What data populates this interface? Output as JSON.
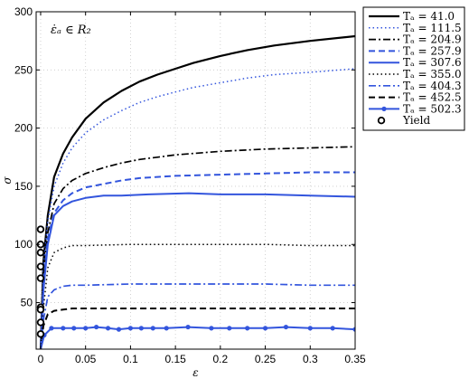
{
  "chart_data": {
    "type": "line",
    "title": "",
    "xlabel": "ε",
    "ylabel": "σ",
    "annotation": "ε̇ₐ ∈ R₂",
    "xlim": [
      -0.005,
      0.35
    ],
    "ylim": [
      10,
      300
    ],
    "xticks": [
      0,
      0.05,
      0.1,
      0.15,
      0.2,
      0.25,
      0.3,
      0.35
    ],
    "xtick_labels": [
      "0",
      "0.05",
      "0.1",
      "0.15",
      "0.2",
      "0.25",
      "0.3",
      "0.35"
    ],
    "yticks": [
      50,
      100,
      150,
      200,
      250,
      300
    ],
    "ytick_labels": [
      "50",
      "100",
      "150",
      "200",
      "250",
      "300"
    ],
    "grid": true,
    "legend_position": "outside-top-right",
    "series": [
      {
        "name": "Tₐ = 41.0",
        "color": "#000000",
        "dash": "solid",
        "width": 2.2,
        "marker": "none",
        "x": [
          0,
          0.003,
          0.008,
          0.015,
          0.025,
          0.035,
          0.05,
          0.07,
          0.09,
          0.11,
          0.13,
          0.15,
          0.17,
          0.2,
          0.23,
          0.26,
          0.3,
          0.35
        ],
        "y": [
          10,
          85,
          125,
          158,
          178,
          192,
          208,
          222,
          232,
          240,
          246,
          251,
          256,
          262,
          267,
          271,
          275,
          279
        ]
      },
      {
        "name": "Tₐ = 111.5",
        "color": "#3355dd",
        "dash": "dot",
        "width": 1.5,
        "marker": "none",
        "x": [
          0,
          0.003,
          0.008,
          0.015,
          0.025,
          0.035,
          0.05,
          0.07,
          0.09,
          0.11,
          0.13,
          0.15,
          0.17,
          0.2,
          0.23,
          0.26,
          0.3,
          0.35
        ],
        "y": [
          10,
          80,
          120,
          150,
          170,
          183,
          196,
          207,
          215,
          222,
          227,
          231,
          235,
          239,
          243,
          246,
          248,
          251
        ]
      },
      {
        "name": "Tₐ = 204.9",
        "color": "#000000",
        "dash": "dashdot",
        "width": 1.7,
        "marker": "none",
        "x": [
          0,
          0.003,
          0.008,
          0.015,
          0.025,
          0.035,
          0.05,
          0.07,
          0.09,
          0.11,
          0.13,
          0.15,
          0.2,
          0.25,
          0.3,
          0.35
        ],
        "y": [
          10,
          70,
          110,
          135,
          148,
          155,
          161,
          166,
          170,
          173,
          175,
          177,
          180,
          182,
          183,
          184
        ]
      },
      {
        "name": "Tₐ = 257.9",
        "color": "#3355dd",
        "dash": "dash",
        "width": 2.0,
        "marker": "none",
        "x": [
          0,
          0.003,
          0.008,
          0.015,
          0.025,
          0.035,
          0.05,
          0.07,
          0.09,
          0.11,
          0.13,
          0.15,
          0.2,
          0.25,
          0.3,
          0.35
        ],
        "y": [
          10,
          65,
          105,
          127,
          138,
          144,
          149,
          152,
          155,
          157,
          158,
          159,
          160,
          161,
          162,
          162
        ]
      },
      {
        "name": "Tₐ = 307.6",
        "color": "#3355dd",
        "dash": "solid",
        "width": 2.0,
        "marker": "none",
        "x": [
          0,
          0.003,
          0.008,
          0.015,
          0.025,
          0.035,
          0.05,
          0.07,
          0.09,
          0.12,
          0.165,
          0.2,
          0.25,
          0.3,
          0.35
        ],
        "y": [
          10,
          60,
          100,
          125,
          133,
          137,
          140,
          142,
          142,
          143,
          144,
          143,
          143,
          142,
          141
        ]
      },
      {
        "name": "Tₐ = 355.0",
        "color": "#000000",
        "dash": "dot",
        "width": 1.5,
        "marker": "none",
        "x": [
          0,
          0.003,
          0.008,
          0.015,
          0.025,
          0.035,
          0.05,
          0.1,
          0.15,
          0.2,
          0.25,
          0.3,
          0.35
        ],
        "y": [
          10,
          45,
          80,
          93,
          97,
          99,
          99,
          100,
          100,
          100,
          100,
          99,
          99
        ]
      },
      {
        "name": "Tₐ = 404.3",
        "color": "#3355dd",
        "dash": "dashdot",
        "width": 1.7,
        "marker": "none",
        "x": [
          0,
          0.003,
          0.008,
          0.015,
          0.025,
          0.035,
          0.05,
          0.1,
          0.15,
          0.2,
          0.25,
          0.3,
          0.35
        ],
        "y": [
          10,
          35,
          55,
          61,
          64,
          65,
          65,
          66,
          66,
          66,
          66,
          65,
          65
        ]
      },
      {
        "name": "Tₐ = 452.5",
        "color": "#000000",
        "dash": "dash",
        "width": 2.0,
        "marker": "none",
        "x": [
          0,
          0.003,
          0.008,
          0.015,
          0.025,
          0.035,
          0.05,
          0.1,
          0.15,
          0.2,
          0.25,
          0.3,
          0.35
        ],
        "y": [
          10,
          30,
          40,
          43,
          44,
          45,
          45,
          45,
          45,
          45,
          45,
          45,
          45
        ]
      },
      {
        "name": "Tₐ = 502.3",
        "color": "#3355dd",
        "dash": "solid",
        "width": 2.0,
        "marker": "dot",
        "x": [
          0,
          0.004,
          0.012,
          0.025,
          0.037,
          0.05,
          0.062,
          0.075,
          0.087,
          0.1,
          0.112,
          0.125,
          0.14,
          0.164,
          0.19,
          0.21,
          0.23,
          0.25,
          0.273,
          0.3,
          0.325,
          0.35
        ],
        "y": [
          10,
          22,
          28,
          28,
          28,
          28,
          29,
          28,
          27,
          28,
          28,
          28,
          28,
          29,
          28,
          28,
          28,
          28,
          29,
          28,
          28,
          27
        ]
      }
    ],
    "yield": {
      "name": "Yield",
      "color": "#000000",
      "x": [
        0.0,
        0.0,
        0.0,
        0.0,
        0.0,
        0.0,
        0.0,
        0.0,
        0.0
      ],
      "y": [
        113,
        100,
        93,
        81,
        71,
        46,
        44,
        33,
        23
      ]
    }
  }
}
